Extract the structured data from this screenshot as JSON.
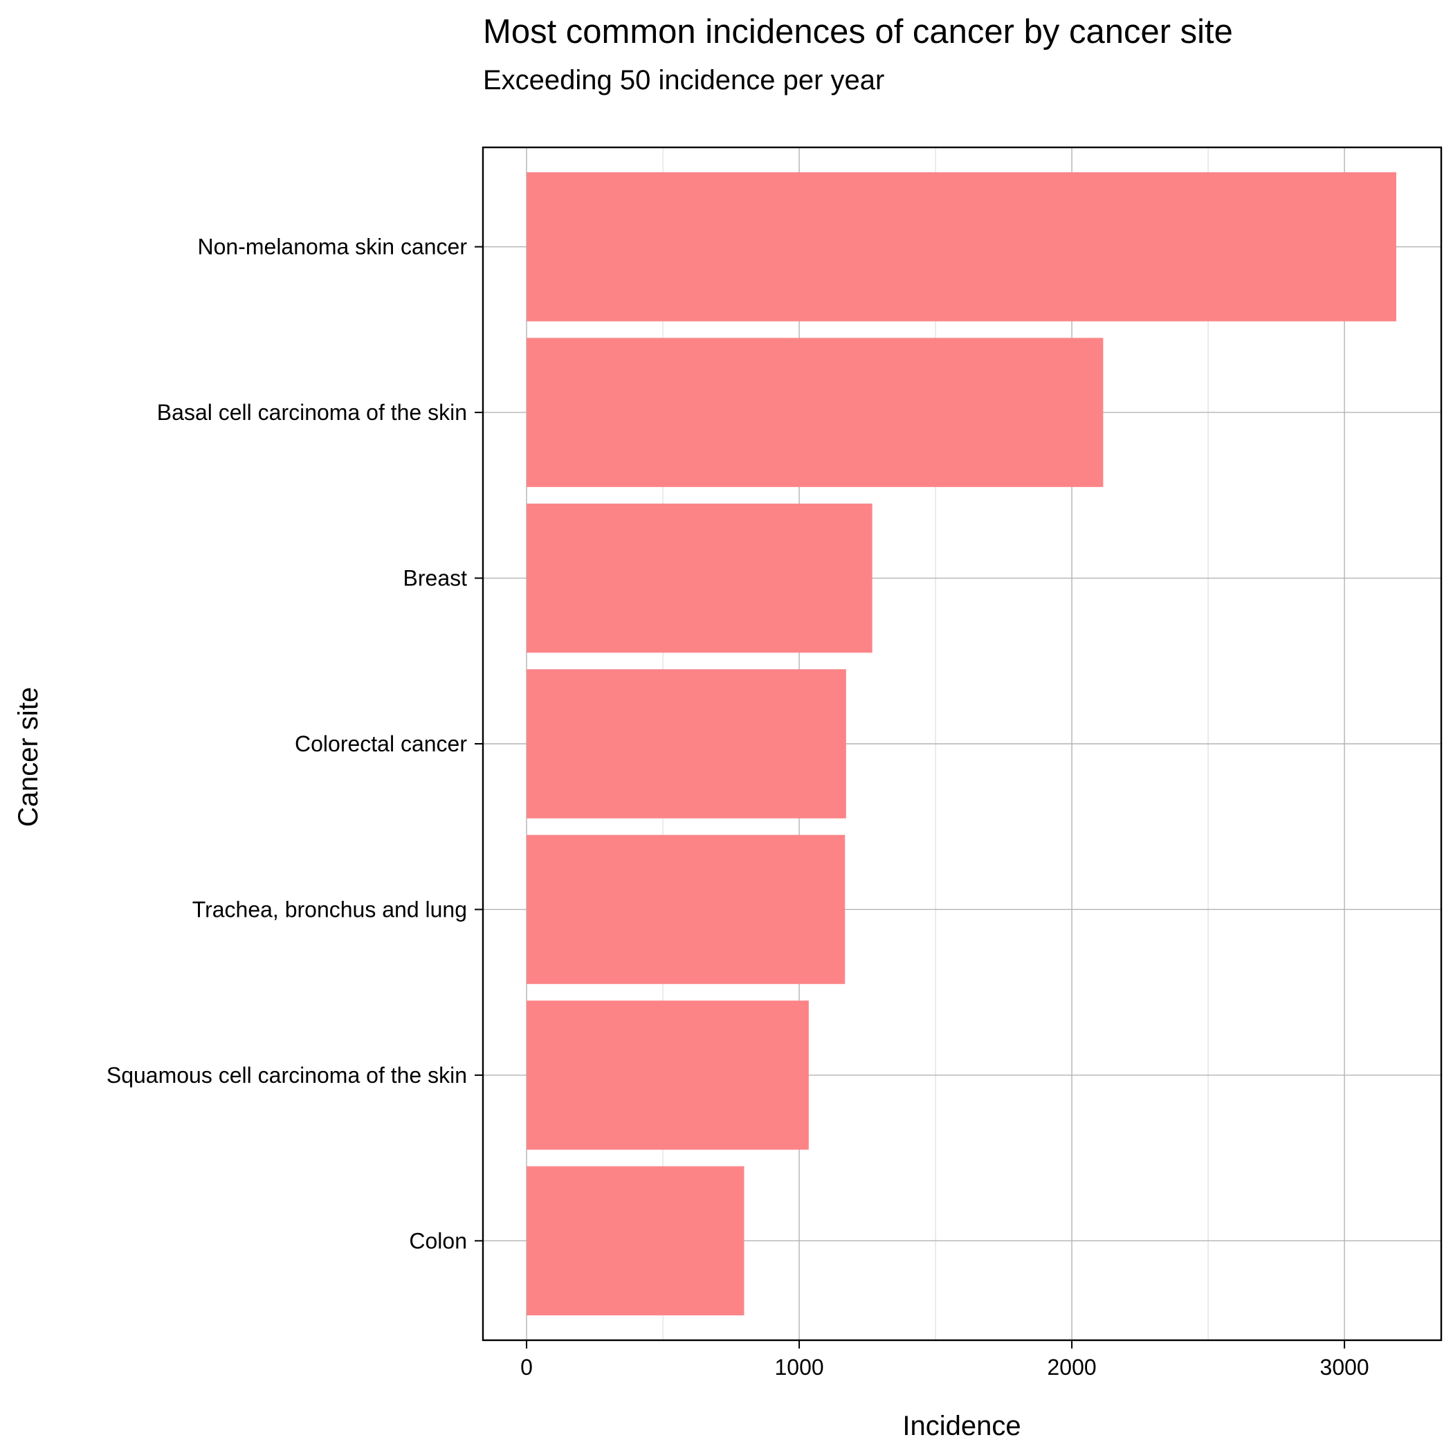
{
  "chart_data": {
    "type": "bar",
    "orientation": "horizontal",
    "title": "Most common incidences of cancer by cancer site",
    "subtitle": "Exceeding 50 incidence per year",
    "xlabel": "Incidence",
    "ylabel": "Cancer site",
    "categories": [
      "Non-melanoma skin cancer",
      "Basal cell carcinoma of the skin",
      "Breast",
      "Colorectal cancer",
      "Trachea, bronchus and lung",
      "Squamous cell carcinoma of the skin",
      "Colon"
    ],
    "values": [
      3190,
      2115,
      1268,
      1172,
      1168,
      1035,
      798
    ],
    "x_ticks": [
      0,
      1000,
      2000,
      3000
    ],
    "x_tick_labels": [
      "0",
      "1000",
      "2000",
      "3000"
    ],
    "xlim": [
      -160,
      3355
    ],
    "grid": true,
    "legend": "none",
    "bar_color": "#fc8487"
  }
}
